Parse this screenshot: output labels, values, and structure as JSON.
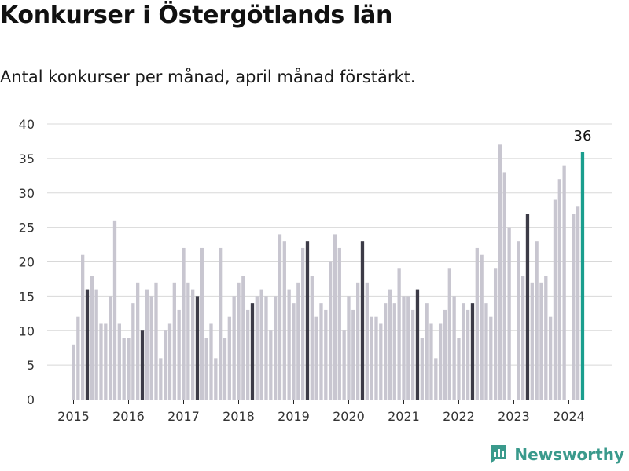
{
  "title": "Konkurser i Östergötlands län",
  "subtitle": "Antal konkurser per månad, april månad förstärkt.",
  "brand": {
    "name": "Newsworthy"
  },
  "colors": {
    "bar_default": "#c8c6d0",
    "bar_april": "#3c3b47",
    "bar_latest": "#1a9e8e",
    "grid": "#d8d8d8",
    "brand": "#3a9a8c"
  },
  "chart_data": {
    "type": "bar",
    "title": "Konkurser i Östergötlands län",
    "xlabel": "",
    "ylabel": "",
    "ylim": [
      0,
      40
    ],
    "yticks": [
      0,
      5,
      10,
      15,
      20,
      25,
      30,
      35,
      40
    ],
    "xticks": [
      "2015",
      "2016",
      "2017",
      "2018",
      "2019",
      "2020",
      "2021",
      "2022",
      "2023",
      "2024"
    ],
    "grid": true,
    "start": "2015-01",
    "highlight_month": "April",
    "annotation": {
      "month": "2024-04",
      "label": "36"
    },
    "series": [
      {
        "values": [
          8,
          12,
          21,
          16,
          18,
          16,
          11,
          11,
          15,
          26,
          11,
          9,
          9,
          14,
          17,
          10,
          16,
          15,
          17,
          6,
          10,
          11,
          17,
          13,
          22,
          17,
          16,
          15,
          22,
          9,
          11,
          6,
          22,
          9,
          12,
          15,
          17,
          18,
          13,
          14,
          15,
          16,
          15,
          10,
          15,
          24,
          23,
          16,
          14,
          17,
          22,
          23,
          18,
          12,
          14,
          13,
          20,
          24,
          22,
          10,
          15,
          13,
          17,
          23,
          17,
          12,
          12,
          11,
          14,
          16,
          14,
          19,
          15,
          15,
          13,
          16,
          9,
          14,
          11,
          6,
          11,
          13,
          19,
          15,
          9,
          14,
          13,
          14,
          22,
          21,
          14,
          12,
          19,
          37,
          33,
          25,
          0,
          23,
          18,
          27,
          17,
          23,
          17,
          18,
          12,
          29,
          32,
          34,
          0,
          27,
          28,
          36
        ]
      }
    ]
  }
}
